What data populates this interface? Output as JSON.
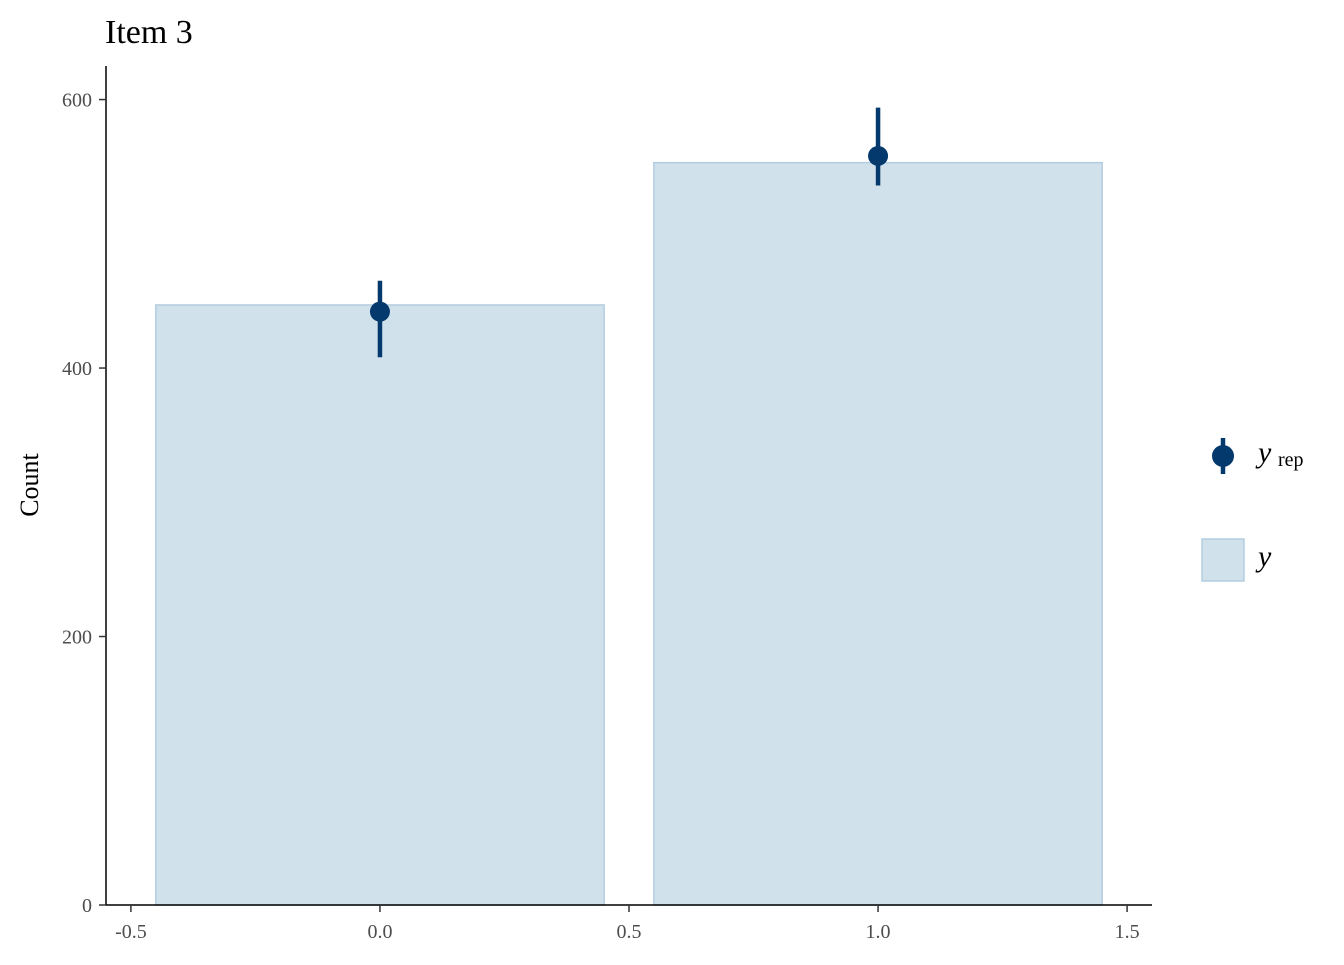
{
  "chart_data": {
    "type": "bar",
    "title": "Item 3",
    "xlabel": "",
    "ylabel": "Count",
    "xlim": [
      -0.55,
      1.55
    ],
    "ylim": [
      0,
      625
    ],
    "x_ticks": [
      -0.5,
      0.0,
      0.5,
      1.0,
      1.5
    ],
    "x_tick_labels": [
      "-0.5",
      "0.0",
      "0.5",
      "1.0",
      "1.5"
    ],
    "y_ticks": [
      0,
      200,
      400,
      600
    ],
    "y_tick_labels": [
      "0",
      "200",
      "400",
      "600"
    ],
    "grid": false,
    "legend_position": "right",
    "bars": {
      "name": "y",
      "x": [
        0,
        1
      ],
      "width": 0.9,
      "values": [
        447,
        553
      ],
      "fill": "#d1e1ec",
      "stroke": "#b3cde0"
    },
    "points": {
      "name": "y_rep",
      "x": [
        0,
        1
      ],
      "median": [
        442,
        558
      ],
      "lower": [
        408,
        536
      ],
      "upper": [
        465,
        594
      ],
      "color": "#03396c"
    },
    "legend": {
      "items": [
        {
          "key": "yrep",
          "main": "y",
          "sub": "rep",
          "color": "#03396c"
        },
        {
          "key": "y",
          "main": "y",
          "sub": "",
          "fill": "#d1e1ec",
          "stroke": "#b3cde0"
        }
      ]
    }
  }
}
